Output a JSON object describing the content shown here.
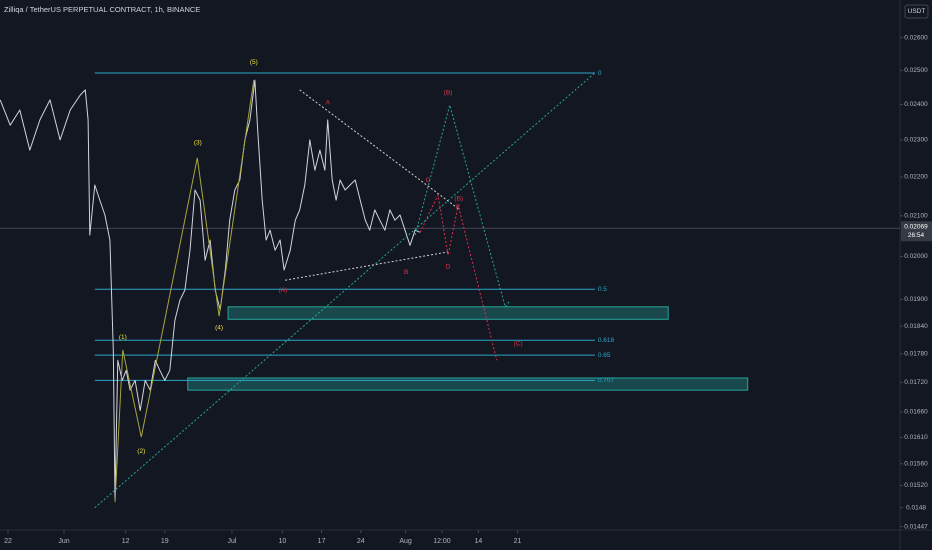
{
  "chart_data": {
    "type": "line",
    "title": "Zilliqa / TetherUS PERPETUAL CONTRACT, 1h, BINANCE",
    "currency": "USDT",
    "log_scale": true,
    "grid": false,
    "xlim": [
      -1.43,
      159.3
    ],
    "ylim": [
      0.01441,
      0.0272
    ],
    "xticks": [
      {
        "value": 0,
        "label": "22"
      },
      {
        "value": 10,
        "label": "Jun"
      },
      {
        "value": 21,
        "label": "12"
      },
      {
        "value": 28,
        "label": "19"
      },
      {
        "value": 40,
        "label": "Jul"
      },
      {
        "value": 49,
        "label": "10"
      },
      {
        "value": 56,
        "label": "17"
      },
      {
        "value": 63,
        "label": "24"
      },
      {
        "value": 71,
        "label": "Aug"
      },
      {
        "value": 77.5,
        "label": "12:00"
      },
      {
        "value": 84,
        "label": "14"
      },
      {
        "value": 91,
        "label": "21"
      }
    ],
    "yticks": [
      {
        "value": 0.026,
        "label": "0.02600"
      },
      {
        "value": 0.025,
        "label": "0.02500"
      },
      {
        "value": 0.024,
        "label": "0.02400"
      },
      {
        "value": 0.023,
        "label": "0.02300"
      },
      {
        "value": 0.022,
        "label": "0.02200"
      },
      {
        "value": 0.021,
        "label": "0.02100"
      },
      {
        "value": 0.02,
        "label": "0.02000"
      },
      {
        "value": 0.019,
        "label": "0.01900"
      },
      {
        "value": 0.0184,
        "label": "0.01840"
      },
      {
        "value": 0.0178,
        "label": "0.01780"
      },
      {
        "value": 0.0172,
        "label": "0.01720"
      },
      {
        "value": 0.0166,
        "label": "0.01660"
      },
      {
        "value": 0.0161,
        "label": "0.01610"
      },
      {
        "value": 0.0156,
        "label": "0.01560"
      },
      {
        "value": 0.0152,
        "label": "0.01520"
      },
      0.0148,
      0.01447
    ],
    "x": [
      -1.4,
      0.4,
      2.1,
      3.9,
      5.7,
      7.5,
      9.3,
      11.1,
      12.9,
      13.8,
      14.3,
      14.6,
      15.5,
      16.4,
      17.3,
      18.2,
      18.8,
      19.1,
      19.6,
      20.4,
      21.1,
      21.8,
      22.7,
      23.6,
      24.5,
      25.4,
      26.3,
      27.1,
      28.0,
      28.9,
      29.8,
      30.7,
      31.6,
      32.5,
      33.4,
      34.3,
      35.2,
      36.1,
      37.0,
      37.9,
      38.8,
      39.6,
      40.5,
      41.4,
      42.3,
      43.2,
      44.1,
      44.6,
      45.4,
      46.1,
      46.8,
      47.7,
      48.6,
      49.3,
      50.4,
      51.3,
      52.1,
      53.0,
      53.9,
      54.8,
      55.7,
      56.6,
      57.1,
      57.9,
      58.6,
      59.3,
      60.2,
      61.1,
      62.0,
      62.9,
      63.8,
      64.6,
      65.5,
      66.4,
      67.3,
      68.2,
      69.1,
      70.0,
      70.9,
      71.8,
      72.7,
      73.6
    ],
    "series": [
      {
        "color": "#d1d4dc",
        "values": [
          0.02413,
          0.02341,
          0.02384,
          0.02272,
          0.02356,
          0.02413,
          0.023,
          0.02384,
          0.02427,
          0.02442,
          0.02356,
          0.02052,
          0.02179,
          0.0214,
          0.02102,
          0.0204,
          0.01788,
          0.01494,
          0.01766,
          0.01724,
          0.01745,
          0.01704,
          0.01724,
          0.01663,
          0.01724,
          0.01704,
          0.01766,
          0.01745,
          0.01724,
          0.01745,
          0.01853,
          0.01898,
          0.01921,
          0.02015,
          0.02166,
          0.0214,
          0.01991,
          0.0204,
          0.01921,
          0.01876,
          0.01968,
          0.02089,
          0.02166,
          0.02192,
          0.023,
          0.02356,
          0.02471,
          0.02327,
          0.0214,
          0.0204,
          0.02064,
          0.02015,
          0.0204,
          0.01968,
          0.02015,
          0.02089,
          0.02115,
          0.02179,
          0.023,
          0.02218,
          0.02272,
          0.02218,
          0.02356,
          0.02192,
          0.0214,
          0.02192,
          0.02166,
          0.02179,
          0.02192,
          0.0214,
          0.02089,
          0.02064,
          0.02115,
          0.02089,
          0.02064,
          0.02115,
          0.02089,
          0.02102,
          0.02064,
          0.02027,
          0.02064,
          0.02059
        ]
      }
    ],
    "last_price": 0.02069,
    "countdown": "26:54",
    "fib_range": [
      15.5,
      104.8
    ],
    "fib_levels": [
      {
        "label": "0",
        "value": 0.02492
      },
      {
        "label": "0.5",
        "value": 0.01923
      },
      {
        "label": "0.618",
        "value": 0.01809
      },
      {
        "label": "0.65",
        "value": 0.01777
      },
      {
        "label": "0.707",
        "value": 0.01724
      }
    ],
    "zones": [
      {
        "x": [
          39.3,
          117.9
        ],
        "y": [
          0.01855,
          0.01883
        ]
      },
      {
        "x": [
          32.1,
          132.1
        ],
        "y": [
          0.01704,
          0.01729
        ]
      }
    ],
    "drawings": [
      {
        "color": "#a8a43c",
        "dash": false,
        "x": [
          19.1,
          20.5,
          23.8,
          33.8,
          37.7,
          43.9
        ],
        "y": [
          0.0149,
          0.01788,
          0.01611,
          0.02251,
          0.01862,
          0.02471
        ]
      },
      {
        "color": "#d1d4dc",
        "dash": true,
        "x": [
          52.1,
          80.7
        ],
        "y": [
          0.02442,
          0.02115
        ]
      },
      {
        "color": "#d1d4dc",
        "dash": true,
        "x": [
          49.5,
          78.6
        ],
        "y": [
          0.01944,
          0.02011
        ]
      },
      {
        "color": "#26a69a",
        "dash": true,
        "x": [
          15.5,
          104.8
        ],
        "y": [
          0.0148,
          0.02492
        ]
      },
      {
        "color": "#26a69a",
        "dash": true,
        "x": [
          72.7,
          78.9,
          88.8,
          89.7
        ],
        "y": [
          0.02052,
          0.02398,
          0.01883,
          0.01898
        ]
      },
      {
        "color": "#e0314b",
        "dash": true,
        "x": [
          73.6,
          76.8,
          78.6,
          80.4,
          87.3
        ],
        "y": [
          0.02059,
          0.02153,
          0.02003,
          0.02127,
          0.01766
        ]
      }
    ],
    "wave_labels": [
      {
        "text": "(1)",
        "x": 20.5,
        "y": 0.01816,
        "color": "#f0e442"
      },
      {
        "text": "(2)",
        "x": 23.8,
        "y": 0.01584,
        "color": "#f0e442"
      },
      {
        "text": "(3)",
        "x": 33.9,
        "y": 0.02292,
        "color": "#f0e442"
      },
      {
        "text": "(4)",
        "x": 37.7,
        "y": 0.01836,
        "color": "#f0e442"
      },
      {
        "text": "(5)",
        "x": 43.9,
        "y": 0.02525,
        "color": "#f0e442"
      },
      {
        "text": "A",
        "x": 57.1,
        "y": 0.02404,
        "color": "#e0314b"
      },
      {
        "text": "B",
        "x": 71.1,
        "y": 0.01963,
        "color": "#e0314b"
      },
      {
        "text": "C",
        "x": 75.0,
        "y": 0.02192,
        "color": "#e0314b"
      },
      {
        "text": "D",
        "x": 78.6,
        "y": 0.01975,
        "color": "#e0314b"
      },
      {
        "text": "E",
        "x": 80.4,
        "y": 0.02122,
        "color": "#e0314b"
      },
      {
        "text": "(A)",
        "x": 49.1,
        "y": 0.01921,
        "color": "#e0314b"
      },
      {
        "text": "(B)",
        "x": 78.6,
        "y": 0.02433,
        "color": "#e0314b"
      },
      {
        "text": "(B)",
        "x": 80.5,
        "y": 0.02143,
        "color": "#e0314b"
      },
      {
        "text": "(C)",
        "x": 91.1,
        "y": 0.01801,
        "color": "#e0314b"
      }
    ]
  }
}
